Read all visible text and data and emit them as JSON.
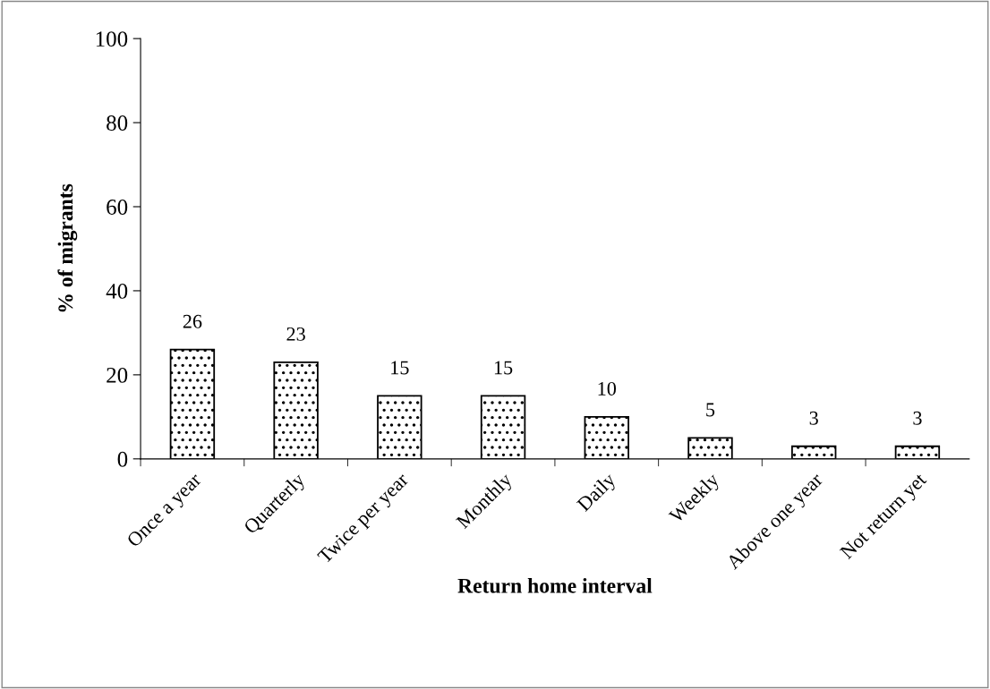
{
  "chart_data": {
    "type": "bar",
    "xlabel": "Return home interval",
    "ylabel": "% of migrants",
    "categories": [
      "Once a year",
      "Quarterly",
      "Twice per year",
      "Monthly",
      "Daily",
      "Weekly",
      "Above one year",
      "Not return yet"
    ],
    "values": [
      26,
      23,
      15,
      15,
      10,
      5,
      3,
      3
    ],
    "color": "#000000",
    "ylim": [
      0,
      100
    ],
    "yticks": [
      0,
      20,
      40,
      60,
      80,
      100
    ],
    "data_labels": true,
    "grid": false,
    "legend": false
  }
}
